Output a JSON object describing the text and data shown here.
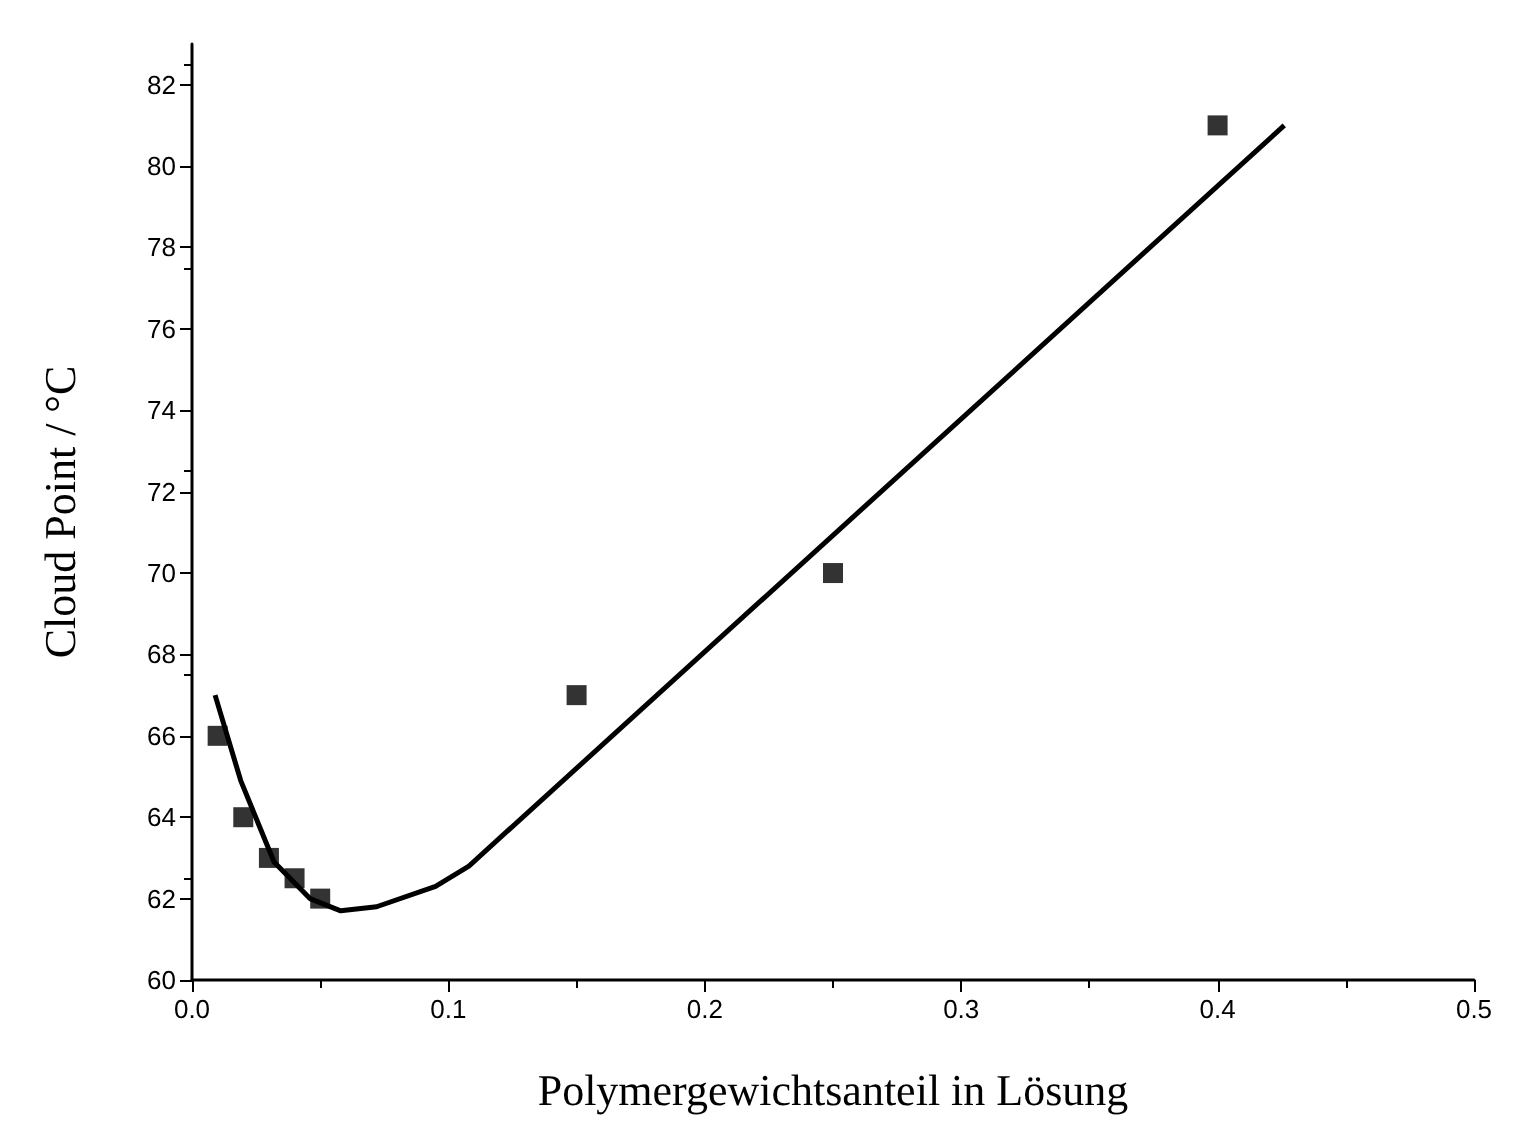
{
  "chart_data": {
    "type": "scatter",
    "xlabel": "Polymergewichtsanteil in Lösung",
    "ylabel": "Cloud Point / °C",
    "xlim": [
      0,
      0.5
    ],
    "ylim": [
      60,
      83
    ],
    "xticks": [
      {
        "value": 0,
        "label": "0.0"
      },
      0.1,
      0.2,
      0.3,
      0.4,
      0.5
    ],
    "yticks": [
      60,
      62,
      64,
      66,
      68,
      70,
      72,
      74,
      76,
      78,
      80,
      82
    ],
    "grid": false,
    "series": [
      {
        "marker": "square",
        "color": "#000000",
        "x": [
          0.01,
          0.02,
          0.03,
          0.04,
          0.05,
          0.15,
          0.25,
          0.4
        ],
        "values": [
          66,
          64,
          63,
          62.5,
          62,
          67,
          70,
          81
        ]
      },
      {
        "type": "line",
        "marker": "none",
        "color": "#000000",
        "x": [
          0.009,
          0.019,
          0.032,
          0.046,
          0.058,
          0.072,
          0.095,
          0.108,
          0.426
        ],
        "values": [
          67,
          64.9,
          62.9,
          62,
          61.7,
          61.8,
          62.3,
          62.8,
          81
        ]
      }
    ]
  }
}
